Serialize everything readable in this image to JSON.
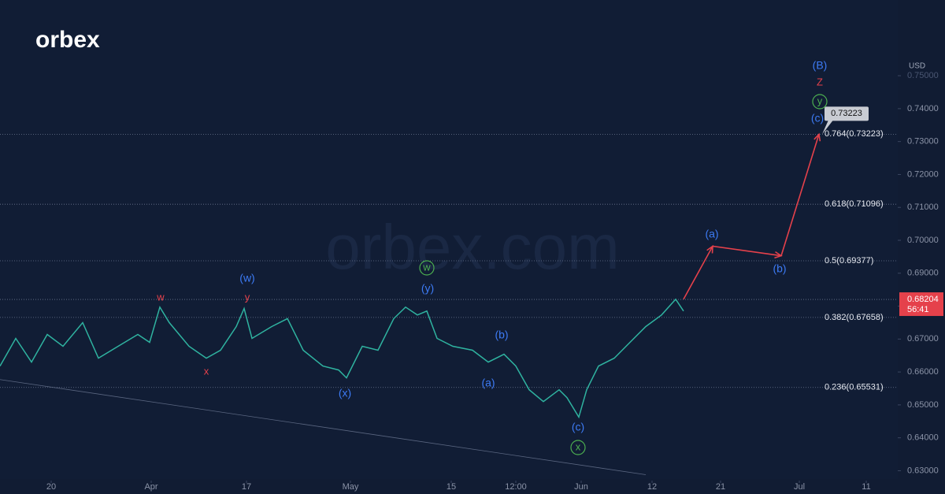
{
  "logo": "orbex",
  "watermark": "orbex.com",
  "chart_data": {
    "type": "line",
    "y_axis_label": "USD",
    "color": "#2fb3a0",
    "x": [
      0,
      2,
      4,
      6,
      8,
      10.5,
      12.5,
      15,
      17.5,
      19,
      20.3,
      21.5,
      24,
      26.2,
      28,
      30,
      31,
      32,
      34.5,
      36.5,
      38.5,
      41,
      43,
      44,
      46,
      48,
      50,
      51.5,
      53,
      54.2,
      55.5,
      57.5,
      60,
      62,
      64,
      65.5,
      67.2,
      69,
      71,
      72,
      73.5,
      74.5,
      76,
      78,
      80,
      82,
      84,
      85.8,
      86.8
    ],
    "values": [
      0.6618,
      0.6702,
      0.663,
      0.6714,
      0.6678,
      0.675,
      0.6642,
      0.6678,
      0.6714,
      0.669,
      0.6797,
      0.675,
      0.6678,
      0.6642,
      0.6666,
      0.6738,
      0.6793,
      0.6702,
      0.6738,
      0.6762,
      0.6666,
      0.6618,
      0.6606,
      0.6582,
      0.6678,
      0.6666,
      0.6762,
      0.6797,
      0.6773,
      0.6785,
      0.6702,
      0.6678,
      0.6666,
      0.663,
      0.6654,
      0.6618,
      0.6546,
      0.651,
      0.6546,
      0.6522,
      0.6463,
      0.6546,
      0.6618,
      0.6642,
      0.669,
      0.6738,
      0.6773,
      0.6821,
      0.6785
    ],
    "xlim": [
      0,
      114
    ],
    "ylim": [
      0.627,
      0.773
    ],
    "xticks": [
      {
        "value": 6.5,
        "label": "20"
      },
      {
        "value": 19.2,
        "label": "Apr"
      },
      {
        "value": 31.3,
        "label": "17"
      },
      {
        "value": 44.5,
        "label": "May"
      },
      {
        "value": 57.3,
        "label": "15"
      },
      {
        "value": 65.5,
        "label": "12:00"
      },
      {
        "value": 73.8,
        "label": "Jun"
      },
      {
        "value": 82.8,
        "label": "12"
      },
      {
        "value": 91.5,
        "label": "21"
      },
      {
        "value": 101.5,
        "label": "Jul"
      },
      {
        "value": 110,
        "label": "11"
      }
    ],
    "yticks": [
      {
        "value": 0.63,
        "label": "0.63000"
      },
      {
        "value": 0.64,
        "label": "0.64000"
      },
      {
        "value": 0.65,
        "label": "0.65000"
      },
      {
        "value": 0.66,
        "label": "0.66000"
      },
      {
        "value": 0.67,
        "label": "0.67000"
      },
      {
        "value": 0.68,
        "label": "0.68000"
      },
      {
        "value": 0.69,
        "label": "0.69000"
      },
      {
        "value": 0.7,
        "label": "0.70000"
      },
      {
        "value": 0.71,
        "label": "0.71000"
      },
      {
        "value": 0.72,
        "label": "0.72000"
      },
      {
        "value": 0.73,
        "label": "0.73000"
      },
      {
        "value": 0.74,
        "label": "0.74000"
      },
      {
        "value": 0.75,
        "label": "0.75000"
      }
    ],
    "last_price": {
      "value": 0.68204,
      "label": "0.68204"
    },
    "countdown": "56:41",
    "last_price_color": "#e5414b",
    "fib_levels": [
      {
        "value": 0.73223,
        "label": "0.764(0.73223)"
      },
      {
        "value": 0.71096,
        "label": "0.618(0.71096)"
      },
      {
        "value": 0.69377,
        "label": "0.5(0.69377)"
      },
      {
        "value": 0.67658,
        "label": "0.382(0.67658)"
      },
      {
        "value": 0.65531,
        "label": "0.236(0.65531)"
      }
    ],
    "projection": {
      "color": "#e5414b",
      "x": [
        86.8,
        90.5,
        99.2,
        104
      ],
      "values": [
        0.6821,
        0.6982,
        0.6953,
        0.73223
      ]
    },
    "target": {
      "value": 0.73223,
      "label": "0.73223"
    },
    "trendline": {
      "x": [
        0,
        82
      ],
      "values": [
        0.6577,
        0.6288
      ]
    },
    "annotations": [
      {
        "text": "w",
        "color": "#e5414b",
        "circled": false
      },
      {
        "text": "x",
        "color": "#e5414b",
        "circled": false
      },
      {
        "text": "y",
        "color": "#e5414b",
        "circled": false
      },
      {
        "text": "(w)",
        "color": "#3d7bf5",
        "circled": false
      },
      {
        "text": "(x)",
        "color": "#3d7bf5",
        "circled": false
      },
      {
        "text": "(y)",
        "color": "#3d7bf5",
        "circled": false
      },
      {
        "text": "w",
        "color": "#4caf50",
        "circled": true
      },
      {
        "text": "(a)",
        "color": "#3d7bf5",
        "circled": false
      },
      {
        "text": "(b)",
        "color": "#3d7bf5",
        "circled": false
      },
      {
        "text": "(c)",
        "color": "#3d7bf5",
        "circled": false
      },
      {
        "text": "x",
        "color": "#4caf50",
        "circled": true
      },
      {
        "text": "(a)",
        "color": "#3d7bf5",
        "circled": false
      },
      {
        "text": "(b)",
        "color": "#3d7bf5",
        "circled": false
      },
      {
        "text": "(B)",
        "color": "#3d7bf5",
        "circled": false
      },
      {
        "text": "Z",
        "color": "#e5414b",
        "circled": false
      },
      {
        "text": "y",
        "color": "#4caf50",
        "circled": true
      },
      {
        "text": "(c)",
        "color": "#3d7bf5",
        "circled": false
      }
    ]
  }
}
